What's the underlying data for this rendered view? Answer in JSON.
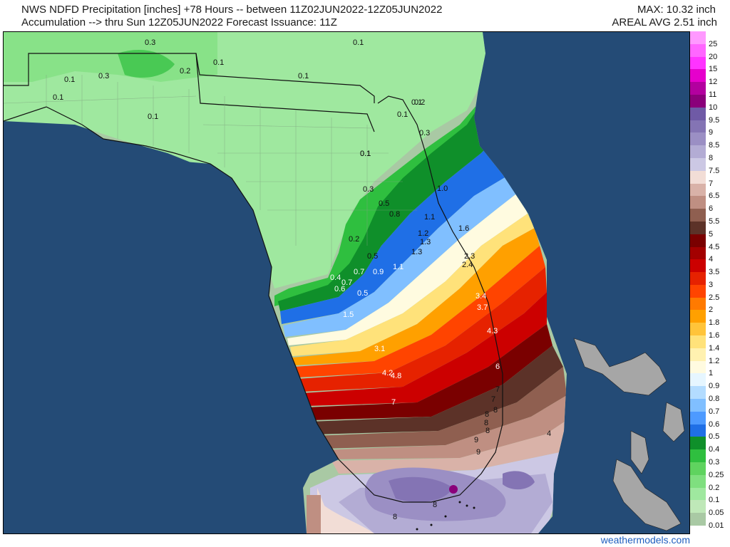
{
  "header": {
    "title_line1": "NWS NDFD Precipitation [inches] +78 Hours -- between 11Z02JUN2022-12Z05JUN2022",
    "title_line2": "Accumulation --> thru Sun 12Z05JUN2022   Forecast Issuance: 11Z",
    "max_text": "MAX: 10.32 inch",
    "areal_avg_text": "AREAL AVG 2.51 inch"
  },
  "legend": {
    "levels": [
      {
        "label": "25",
        "color": "#ff99ff"
      },
      {
        "label": "20",
        "color": "#ff66ff"
      },
      {
        "label": "15",
        "color": "#ff33ff"
      },
      {
        "label": "12",
        "color": "#e600cc"
      },
      {
        "label": "11",
        "color": "#b3009f"
      },
      {
        "label": "10",
        "color": "#8a007a"
      },
      {
        "label": "9.5",
        "color": "#6f5aa6"
      },
      {
        "label": "9",
        "color": "#8474b4"
      },
      {
        "label": "8.5",
        "color": "#9b8fc4"
      },
      {
        "label": "8",
        "color": "#b3acd4"
      },
      {
        "label": "7.5",
        "color": "#ccc8e4"
      },
      {
        "label": "7",
        "color": "#f2ddd6"
      },
      {
        "label": "6.5",
        "color": "#d9b2a8"
      },
      {
        "label": "6",
        "color": "#bf8f82"
      },
      {
        "label": "5.5",
        "color": "#8f5f50"
      },
      {
        "label": "5",
        "color": "#5c3228"
      },
      {
        "label": "4.5",
        "color": "#7a0000"
      },
      {
        "label": "4",
        "color": "#a30000"
      },
      {
        "label": "3.5",
        "color": "#cc0000"
      },
      {
        "label": "3",
        "color": "#e62200"
      },
      {
        "label": "2.5",
        "color": "#ff4400"
      },
      {
        "label": "2",
        "color": "#ff7a00"
      },
      {
        "label": "1.8",
        "color": "#ffa000"
      },
      {
        "label": "1.6",
        "color": "#ffc43a"
      },
      {
        "label": "1.4",
        "color": "#ffe27a"
      },
      {
        "label": "1.2",
        "color": "#fff1b0"
      },
      {
        "label": "1",
        "color": "#fffbe0"
      },
      {
        "label": "0.9",
        "color": "#e6f6ff"
      },
      {
        "label": "0.8",
        "color": "#b3dcff"
      },
      {
        "label": "0.7",
        "color": "#80bfff"
      },
      {
        "label": "0.6",
        "color": "#4d9aff"
      },
      {
        "label": "0.5",
        "color": "#1f6fe6"
      },
      {
        "label": "0.4",
        "color": "#0f8f2a"
      },
      {
        "label": "0.3",
        "color": "#2fbf3f"
      },
      {
        "label": "0.25",
        "color": "#5fd35f"
      },
      {
        "label": "0.2",
        "color": "#7fdf7f"
      },
      {
        "label": "0.1",
        "color": "#9fe89f"
      },
      {
        "label": "0.05",
        "color": "#bfe8b8"
      },
      {
        "label": "0.01",
        "color": "#a9c9a4"
      }
    ]
  },
  "map_labels": [
    {
      "text": "0.3"
    },
    {
      "text": "0.1"
    },
    {
      "text": "0.1"
    },
    {
      "text": "0.3"
    },
    {
      "text": "0.1"
    },
    {
      "text": "0.2"
    },
    {
      "text": "0.1"
    },
    {
      "text": "0.1"
    },
    {
      "text": "0.1"
    },
    {
      "text": "0.1"
    },
    {
      "text": "0.2"
    },
    {
      "text": "0.1"
    },
    {
      "text": "0.1"
    },
    {
      "text": "0.3"
    },
    {
      "text": "0.1"
    },
    {
      "text": "1.0"
    },
    {
      "text": "0.3"
    },
    {
      "text": "0.5"
    },
    {
      "text": "0.8"
    },
    {
      "text": "1.1"
    },
    {
      "text": "1.2"
    },
    {
      "text": "1.3"
    },
    {
      "text": "1.6"
    },
    {
      "text": "0.2"
    },
    {
      "text": "1.3"
    },
    {
      "text": "0.5"
    },
    {
      "text": "2.3"
    },
    {
      "text": "2.4"
    },
    {
      "text": "0.5"
    },
    {
      "text": "0.7"
    },
    {
      "text": "0.9"
    },
    {
      "text": "1.1"
    },
    {
      "text": "0.4"
    },
    {
      "text": "0.7"
    },
    {
      "text": "0.6"
    },
    {
      "text": "3.4"
    },
    {
      "text": "3.7"
    },
    {
      "text": "1.5"
    },
    {
      "text": "4.3"
    },
    {
      "text": "3.1"
    },
    {
      "text": "6"
    },
    {
      "text": "4.2"
    },
    {
      "text": "4.8"
    },
    {
      "text": "7"
    },
    {
      "text": "7"
    },
    {
      "text": "8"
    },
    {
      "text": "7"
    },
    {
      "text": "8"
    },
    {
      "text": "8"
    },
    {
      "text": "8"
    },
    {
      "text": "4"
    },
    {
      "text": "9"
    },
    {
      "text": "9"
    },
    {
      "text": "8"
    },
    {
      "text": "8"
    }
  ],
  "credit": "weathermodels.com"
}
